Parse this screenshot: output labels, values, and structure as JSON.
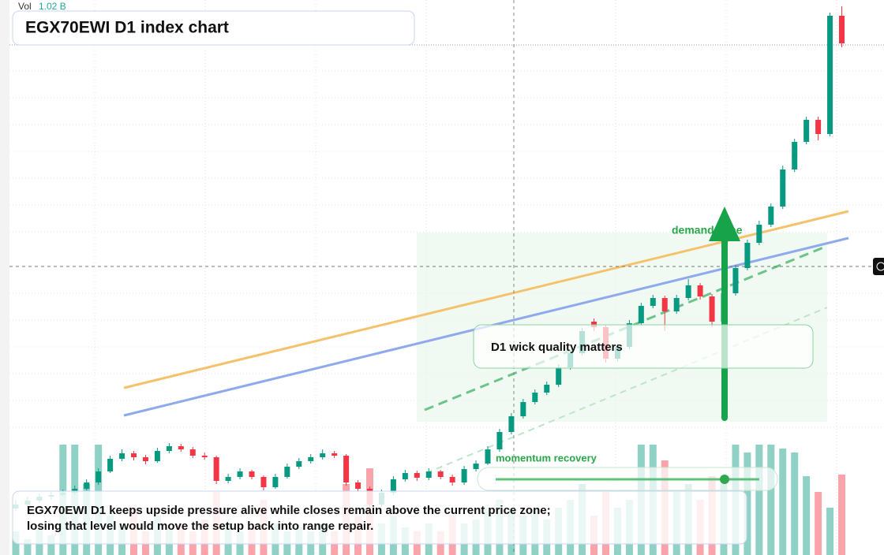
{
  "title": "EGX70EWI D1 index chart",
  "volume": {
    "label": "Vol",
    "value_label": "1.02 B"
  },
  "annotations": {
    "zone": "demand zone",
    "note": "D1 wick quality matters",
    "slider": "momentum recovery"
  },
  "caption": [
    "EGX70EWI D1 keeps upside pressure alive while closes remain above the current price zone;",
    "losing that level would move the setup back into range repair."
  ],
  "chart_data": {
    "type": "candlestick",
    "ylim": [
      0,
      700
    ],
    "vlim": [
      0,
      1.6
    ],
    "up_color": "#089981",
    "down_color": "#f23645",
    "candles": [
      [
        55,
        66,
        52,
        60
      ],
      [
        60,
        70,
        57,
        65
      ],
      [
        65,
        74,
        62,
        70
      ],
      [
        70,
        76,
        66,
        72
      ],
      [
        72,
        79,
        70,
        75
      ],
      [
        75,
        84,
        72,
        80
      ],
      [
        80,
        92,
        78,
        88
      ],
      [
        88,
        106,
        85,
        102
      ],
      [
        102,
        122,
        100,
        118
      ],
      [
        118,
        130,
        115,
        125
      ],
      [
        125,
        128,
        116,
        120
      ],
      [
        120,
        123,
        111,
        115
      ],
      [
        115,
        132,
        113,
        128
      ],
      [
        128,
        138,
        125,
        134
      ],
      [
        134,
        137,
        127,
        130
      ],
      [
        130,
        133,
        119,
        122
      ],
      [
        122,
        126,
        117,
        120
      ],
      [
        120,
        122,
        86,
        90
      ],
      [
        90,
        99,
        87,
        95
      ],
      [
        95,
        106,
        92,
        102
      ],
      [
        102,
        104,
        92,
        95
      ],
      [
        95,
        97,
        78,
        82
      ],
      [
        82,
        99,
        80,
        95
      ],
      [
        95,
        112,
        93,
        108
      ],
      [
        108,
        119,
        105,
        115
      ],
      [
        115,
        124,
        112,
        120
      ],
      [
        120,
        130,
        117,
        125
      ],
      [
        125,
        128,
        119,
        122
      ],
      [
        122,
        124,
        84,
        88
      ],
      [
        88,
        91,
        76,
        80
      ],
      [
        80,
        83,
        56,
        60
      ],
      [
        60,
        79,
        57,
        75
      ],
      [
        75,
        96,
        72,
        92
      ],
      [
        92,
        104,
        89,
        100
      ],
      [
        100,
        103,
        90,
        94
      ],
      [
        94,
        106,
        91,
        102
      ],
      [
        102,
        104,
        92,
        95
      ],
      [
        95,
        98,
        84,
        88
      ],
      [
        88,
        109,
        85,
        105
      ],
      [
        105,
        116,
        102,
        112
      ],
      [
        112,
        134,
        110,
        130
      ],
      [
        130,
        156,
        127,
        152
      ],
      [
        152,
        176,
        149,
        172
      ],
      [
        172,
        194,
        169,
        190
      ],
      [
        190,
        206,
        187,
        202
      ],
      [
        202,
        216,
        199,
        212
      ],
      [
        212,
        238,
        209,
        234
      ],
      [
        234,
        256,
        231,
        252
      ],
      [
        252,
        284,
        249,
        280
      ],
      [
        292,
        296,
        280,
        285
      ],
      [
        285,
        288,
        240,
        245
      ],
      [
        245,
        264,
        242,
        260
      ],
      [
        260,
        294,
        257,
        290
      ],
      [
        290,
        316,
        287,
        312
      ],
      [
        312,
        326,
        309,
        322
      ],
      [
        322,
        325,
        280,
        305
      ],
      [
        305,
        326,
        302,
        322
      ],
      [
        322,
        346,
        319,
        338
      ],
      [
        338,
        341,
        320,
        324
      ],
      [
        324,
        327,
        285,
        292
      ],
      [
        292,
        332,
        289,
        328
      ],
      [
        328,
        364,
        325,
        360
      ],
      [
        360,
        396,
        357,
        392
      ],
      [
        392,
        420,
        389,
        415
      ],
      [
        415,
        442,
        412,
        438
      ],
      [
        438,
        490,
        435,
        485
      ],
      [
        485,
        524,
        482,
        520
      ],
      [
        520,
        552,
        517,
        548
      ],
      [
        548,
        552,
        522,
        530
      ],
      [
        530,
        684,
        527,
        680
      ],
      [
        680,
        692,
        640,
        645
      ]
    ],
    "volumes": [
      0.3,
      0.2,
      0.35,
      0.25,
      1.4,
      1.4,
      0.9,
      1.4,
      0.5,
      0.4,
      0.6,
      0.3,
      0.5,
      0.35,
      0.4,
      0.3,
      0.45,
      0.8,
      0.4,
      0.3,
      0.35,
      0.7,
      0.4,
      0.3,
      0.35,
      0.3,
      0.4,
      0.3,
      0.9,
      0.5,
      1.1,
      0.4,
      0.5,
      0.35,
      0.3,
      0.4,
      0.3,
      0.5,
      0.4,
      0.45,
      0.6,
      0.7,
      0.6,
      0.5,
      0.55,
      0.45,
      0.6,
      0.7,
      0.9,
      0.5,
      0.8,
      0.6,
      0.7,
      1.4,
      1.4,
      1.2,
      0.8,
      0.9,
      0.7,
      1.0,
      0.9,
      1.4,
      1.3,
      1.4,
      1.4,
      1.35,
      1.3,
      1.0,
      0.8,
      0.6,
      1.02
    ]
  }
}
